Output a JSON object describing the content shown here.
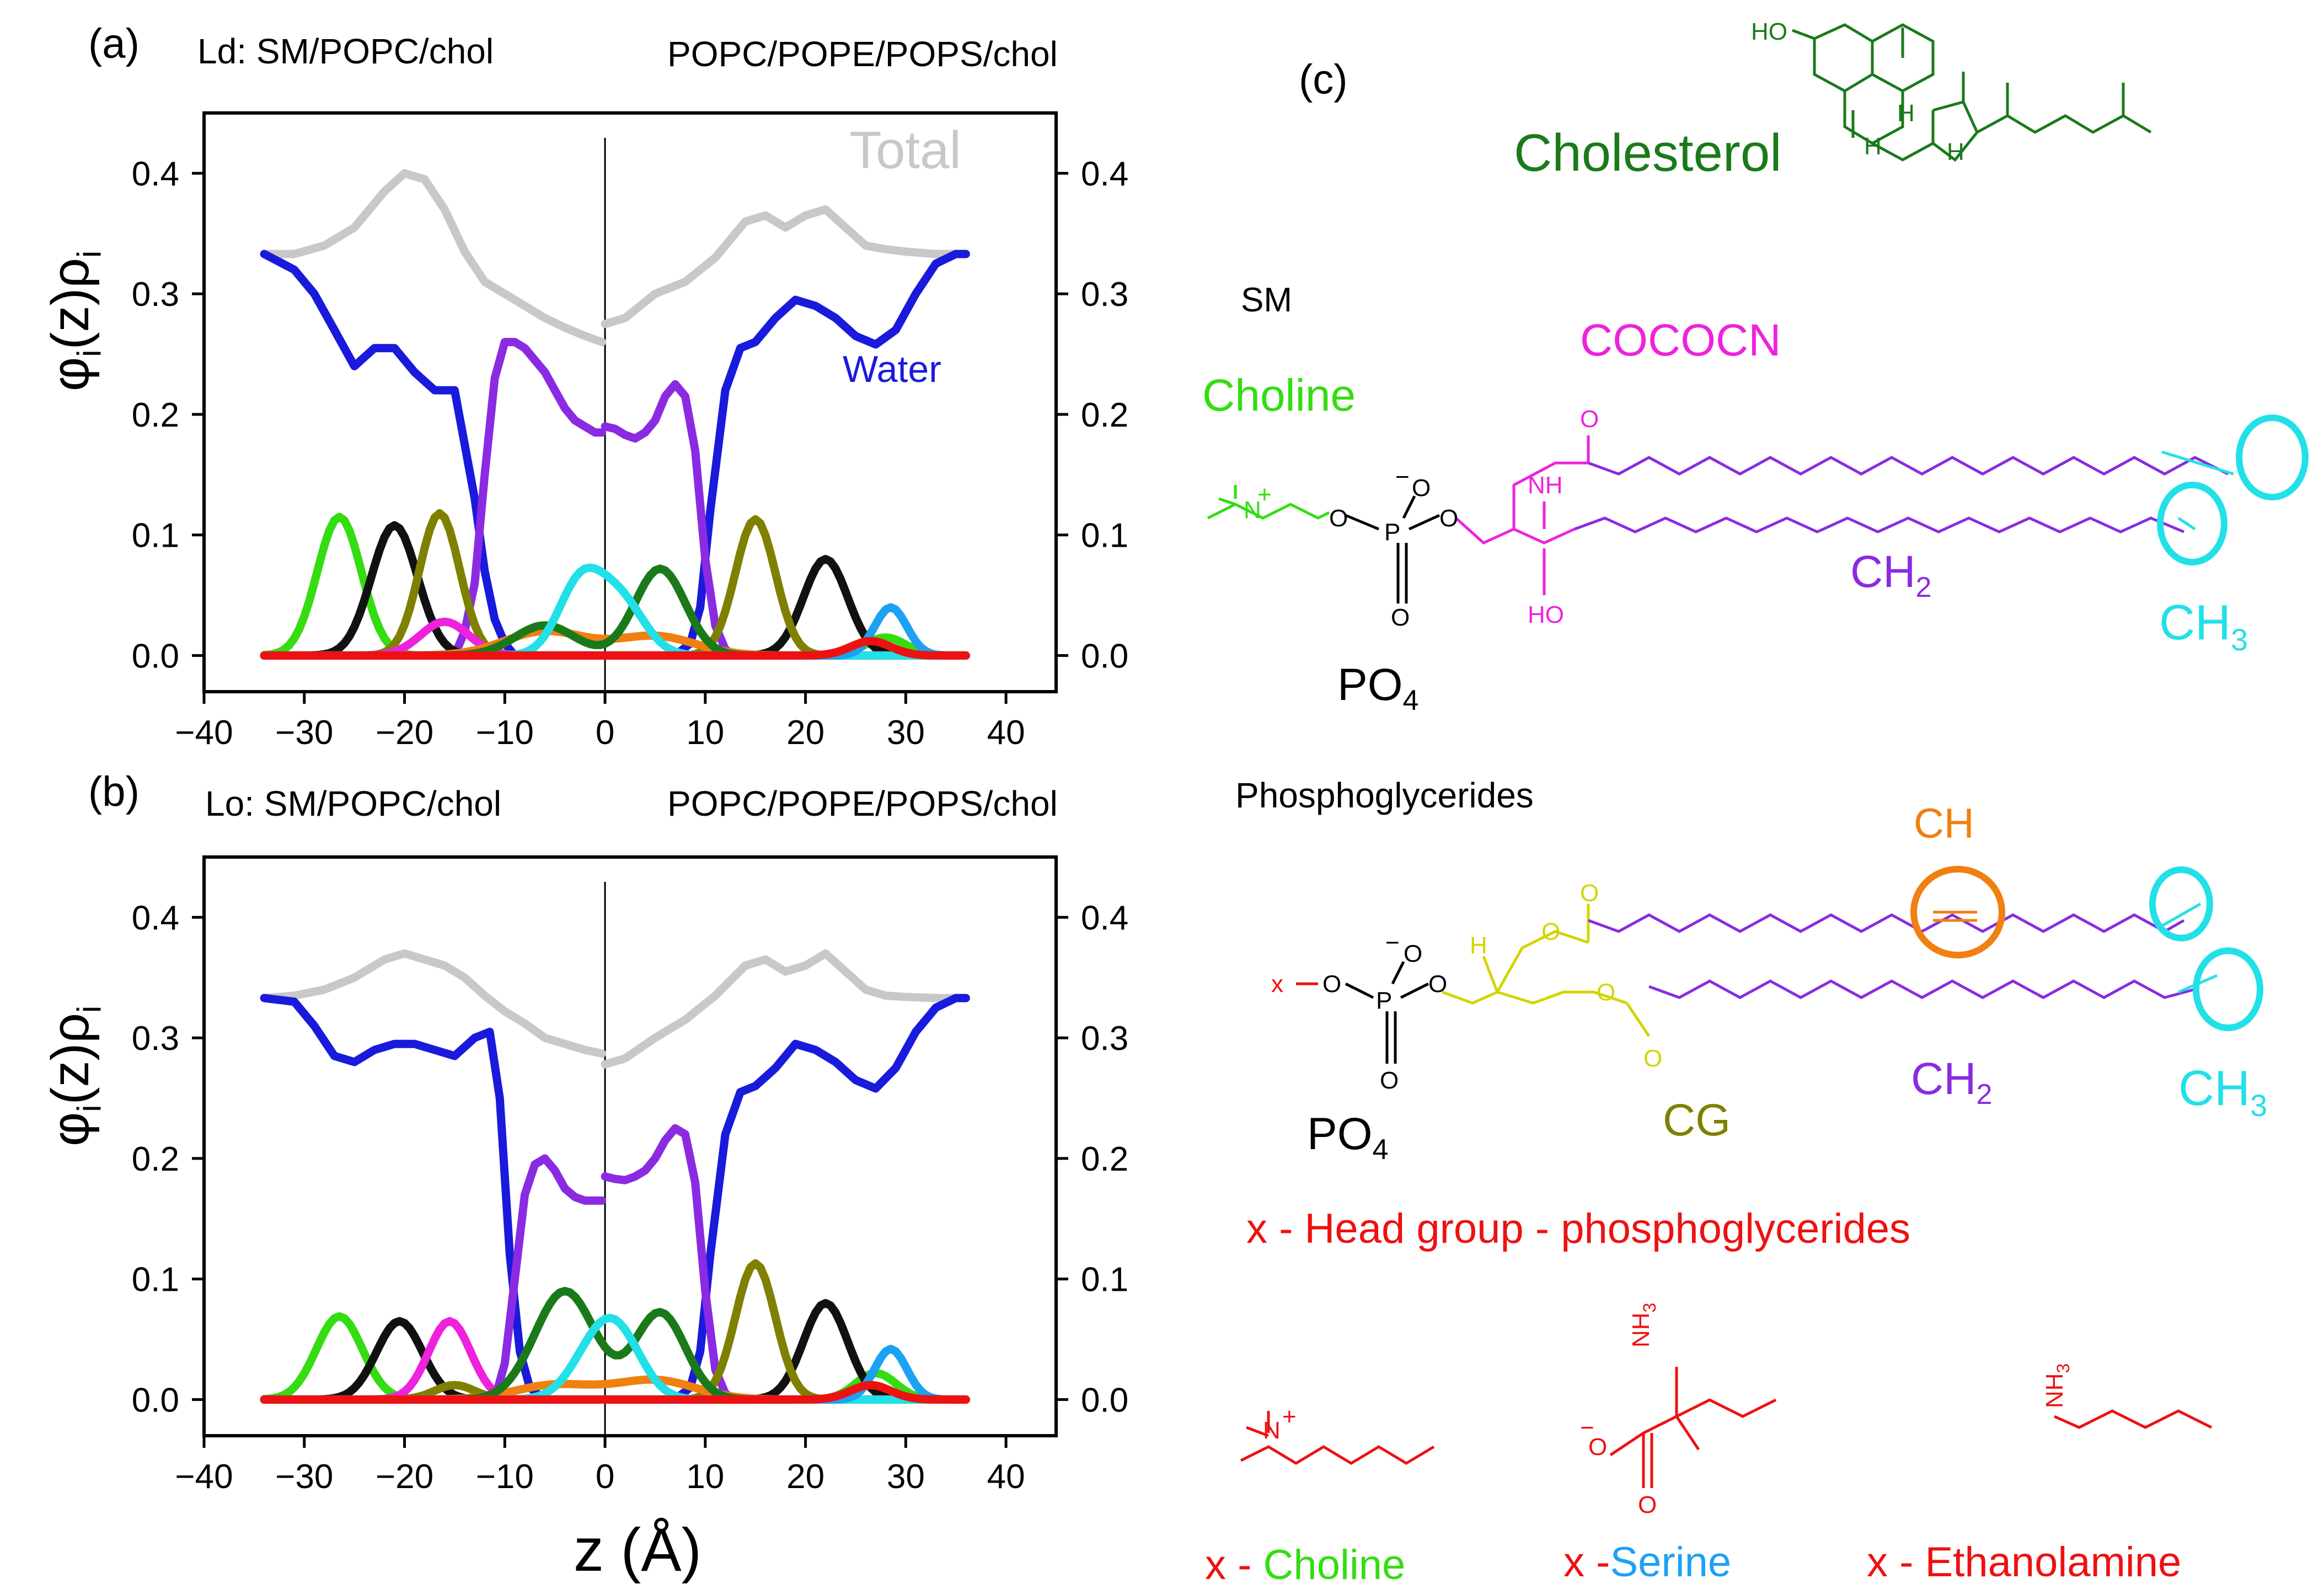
{
  "chart_data": [
    {
      "type": "line",
      "panel": "(a)",
      "title_left": "Ld: SM/POPC/chol",
      "title_right": "POPC/POPE/POPS/chol",
      "xlabel": "z (Å)",
      "ylabel": "φi(z)ρi",
      "xlim": [
        -40,
        45
      ],
      "ylim": [
        -0.03,
        0.45
      ],
      "xticks": [
        "−40",
        "−30",
        "−20",
        "−10",
        "0",
        "10",
        "20",
        "30",
        "40"
      ],
      "yticks": [
        "0.0",
        "0.1",
        "0.2",
        "0.3",
        "0.4"
      ],
      "annotations": [
        {
          "text": "Total",
          "color": "#c8c8c8"
        },
        {
          "text": "Water",
          "color": "#1a1adc"
        }
      ],
      "series": [
        {
          "name": "Total",
          "color": "#c8c8c8",
          "x": [
            -34,
            -31,
            -28,
            -25,
            -22,
            -20,
            -18,
            -16,
            -14,
            -12,
            -10,
            -8,
            -6,
            -4,
            -2,
            -0.3
          ],
          "y": [
            0.333,
            0.333,
            0.34,
            0.355,
            0.385,
            0.4,
            0.395,
            0.37,
            0.335,
            0.31,
            0.3,
            0.29,
            0.28,
            0.272,
            0.265,
            0.26
          ]
        },
        {
          "name": "Total",
          "color": "#c8c8c8",
          "x": [
            0,
            2,
            5,
            8,
            11,
            14,
            16,
            18,
            20,
            22,
            24,
            26,
            28,
            30,
            33,
            36
          ],
          "y": [
            0.275,
            0.28,
            0.3,
            0.31,
            0.33,
            0.36,
            0.365,
            0.355,
            0.365,
            0.37,
            0.355,
            0.34,
            0.337,
            0.335,
            0.333,
            0.333
          ]
        },
        {
          "name": "Water",
          "color": "#1a1adc",
          "x": [
            -34,
            -31,
            -29,
            -27,
            -25,
            -23,
            -21,
            -19,
            -17,
            -15,
            -13,
            -12,
            -11,
            -10,
            -9,
            -7,
            -4,
            -0.3
          ],
          "y": [
            0.333,
            0.32,
            0.3,
            0.27,
            0.24,
            0.255,
            0.255,
            0.235,
            0.22,
            0.22,
            0.13,
            0.07,
            0.03,
            0.01,
            0.0,
            0.0,
            0.0,
            0.0
          ]
        },
        {
          "name": "Water",
          "color": "#1a1adc",
          "x": [
            0,
            3,
            7,
            8.5,
            9.5,
            10.5,
            12,
            13.5,
            15,
            17,
            19,
            21,
            23,
            25,
            27,
            29,
            31,
            33,
            35,
            36
          ],
          "y": [
            0.0,
            0.0,
            0.0,
            0.01,
            0.04,
            0.12,
            0.22,
            0.255,
            0.26,
            0.28,
            0.295,
            0.29,
            0.28,
            0.265,
            0.258,
            0.27,
            0.3,
            0.325,
            0.333,
            0.333
          ]
        },
        {
          "name": "CH2",
          "color": "#8a2be2",
          "x": [
            -15,
            -14,
            -13,
            -12,
            -11,
            -10,
            -9,
            -8,
            -7,
            -6,
            -5,
            -4,
            -3,
            -2,
            -1,
            -0.3
          ],
          "y": [
            0.0,
            0.02,
            0.06,
            0.15,
            0.23,
            0.26,
            0.26,
            0.255,
            0.245,
            0.235,
            0.22,
            0.205,
            0.195,
            0.19,
            0.185,
            0.185
          ]
        },
        {
          "name": "CH2",
          "color": "#8a2be2",
          "x": [
            0,
            1,
            2,
            3,
            4,
            5,
            6,
            7,
            8,
            9,
            10,
            11,
            12,
            13
          ],
          "y": [
            0.19,
            0.188,
            0.183,
            0.18,
            0.185,
            0.195,
            0.215,
            0.225,
            0.215,
            0.17,
            0.08,
            0.025,
            0.005,
            0.0
          ]
        },
        {
          "name": "Choline",
          "color": "#33dd11",
          "shape": "peaks",
          "peaks": [
            {
              "mu": -26.5,
              "h": 0.115,
              "s": 2.2
            },
            {
              "mu": 28,
              "h": 0.015,
              "s": 2.0
            }
          ]
        },
        {
          "name": "PO4",
          "color": "#111111",
          "shape": "peaks",
          "peaks": [
            {
              "mu": -21,
              "h": 0.108,
              "s": 2.3
            },
            {
              "mu": 22,
              "h": 0.08,
              "s": 2.2
            }
          ]
        },
        {
          "name": "CG",
          "color": "#808000",
          "shape": "peaks",
          "peaks": [
            {
              "mu": -16.5,
              "h": 0.118,
              "s": 2.0
            },
            {
              "mu": 15,
              "h": 0.113,
              "s": 2.0
            }
          ]
        },
        {
          "name": "COCOCN",
          "color": "#ee22dd",
          "shape": "peaks",
          "peaks": [
            {
              "mu": -16,
              "h": 0.028,
              "s": 2.4
            }
          ]
        },
        {
          "name": "CH",
          "color": "#f08010",
          "shape": "peaks",
          "peaks": [
            {
              "mu": -6,
              "h": 0.02,
              "s": 4.0
            },
            {
              "mu": 5,
              "h": 0.016,
              "s": 4.0
            }
          ]
        },
        {
          "name": "Cholesterol",
          "color": "#1a7a1a",
          "shape": "peaks",
          "peaks": [
            {
              "mu": -6,
              "h": 0.025,
              "s": 3.0
            },
            {
              "mu": 5.5,
              "h": 0.072,
              "s": 2.5
            }
          ]
        },
        {
          "name": "CH3",
          "color": "#22e0e8",
          "shape": "peaks",
          "peaks": [
            {
              "mu": -2.5,
              "h": 0.058,
              "s": 2.2
            },
            {
              "mu": 1.5,
              "h": 0.045,
              "s": 2.4
            }
          ]
        },
        {
          "name": "Serine",
          "color": "#1da1f2",
          "shape": "peaks",
          "peaks": [
            {
              "mu": 28.5,
              "h": 0.04,
              "s": 1.6
            }
          ]
        },
        {
          "name": "Ethanolamine",
          "color": "#ee1111",
          "shape": "peaks",
          "peaks": [
            {
              "mu": 26.5,
              "h": 0.012,
              "s": 2.0
            }
          ]
        }
      ]
    },
    {
      "type": "line",
      "panel": "(b)",
      "title_left": "Lo: SM/POPC/chol",
      "title_right": "POPC/POPE/POPS/chol",
      "xlabel": "z (Å)",
      "ylabel": "φi(z)ρi",
      "xlim": [
        -40,
        45
      ],
      "ylim": [
        -0.03,
        0.45
      ],
      "xticks": [
        "−40",
        "−30",
        "−20",
        "−10",
        "0",
        "10",
        "20",
        "30",
        "40"
      ],
      "yticks": [
        "0.0",
        "0.1",
        "0.2",
        "0.3",
        "0.4"
      ],
      "annotations": [],
      "series": [
        {
          "name": "Total",
          "color": "#c8c8c8",
          "x": [
            -34,
            -31,
            -28,
            -25,
            -22,
            -20,
            -18,
            -16,
            -14,
            -12,
            -10,
            -8,
            -6,
            -4,
            -2,
            -0.3
          ],
          "y": [
            0.333,
            0.335,
            0.34,
            0.35,
            0.365,
            0.37,
            0.365,
            0.36,
            0.35,
            0.335,
            0.322,
            0.312,
            0.3,
            0.295,
            0.29,
            0.287
          ]
        },
        {
          "name": "Total",
          "color": "#c8c8c8",
          "x": [
            0,
            2,
            5,
            8,
            11,
            14,
            16,
            18,
            20,
            22,
            24,
            26,
            28,
            30,
            33,
            36
          ],
          "y": [
            0.278,
            0.283,
            0.3,
            0.315,
            0.335,
            0.36,
            0.365,
            0.355,
            0.36,
            0.37,
            0.355,
            0.34,
            0.335,
            0.334,
            0.333,
            0.333
          ]
        },
        {
          "name": "Water",
          "color": "#1a1adc",
          "x": [
            -34,
            -31,
            -29,
            -27,
            -25,
            -23,
            -21,
            -19,
            -17,
            -15,
            -13,
            -11.5,
            -10.5,
            -9.5,
            -8.5,
            -7.5,
            -6,
            -3,
            -0.3
          ],
          "y": [
            0.333,
            0.33,
            0.31,
            0.285,
            0.28,
            0.29,
            0.295,
            0.295,
            0.29,
            0.285,
            0.3,
            0.305,
            0.25,
            0.12,
            0.04,
            0.01,
            0.0,
            0.0,
            0.0
          ]
        },
        {
          "name": "Water",
          "color": "#1a1adc",
          "x": [
            0,
            3,
            7,
            8.5,
            9.5,
            10.5,
            12,
            13.5,
            15,
            17,
            19,
            21,
            23,
            25,
            27,
            29,
            31,
            33,
            35,
            36
          ],
          "y": [
            0.0,
            0.0,
            0.0,
            0.01,
            0.04,
            0.12,
            0.22,
            0.255,
            0.26,
            0.275,
            0.295,
            0.29,
            0.28,
            0.265,
            0.258,
            0.275,
            0.305,
            0.325,
            0.333,
            0.333
          ]
        },
        {
          "name": "CH2",
          "color": "#8a2be2",
          "x": [
            -11,
            -10,
            -9,
            -8,
            -7,
            -6,
            -5,
            -4,
            -3,
            -2,
            -1,
            -0.3
          ],
          "y": [
            0.0,
            0.03,
            0.1,
            0.17,
            0.195,
            0.2,
            0.19,
            0.175,
            0.168,
            0.165,
            0.165,
            0.165
          ]
        },
        {
          "name": "CH2",
          "color": "#8a2be2",
          "x": [
            0,
            1,
            2,
            3,
            4,
            5,
            6,
            7,
            8,
            9,
            10,
            11,
            12,
            13
          ],
          "y": [
            0.185,
            0.183,
            0.182,
            0.185,
            0.19,
            0.2,
            0.215,
            0.225,
            0.22,
            0.18,
            0.09,
            0.025,
            0.005,
            0.0
          ]
        },
        {
          "name": "Choline",
          "color": "#33dd11",
          "shape": "peaks",
          "peaks": [
            {
              "mu": -26.5,
              "h": 0.069,
              "s": 2.3
            },
            {
              "mu": 27,
              "h": 0.022,
              "s": 2.0
            }
          ]
        },
        {
          "name": "PO4",
          "color": "#111111",
          "shape": "peaks",
          "peaks": [
            {
              "mu": -20.5,
              "h": 0.065,
              "s": 2.3
            },
            {
              "mu": 22,
              "h": 0.08,
              "s": 2.2
            }
          ]
        },
        {
          "name": "CG",
          "color": "#808000",
          "shape": "peaks",
          "peaks": [
            {
              "mu": -15,
              "h": 0.012,
              "s": 2.0
            },
            {
              "mu": 15,
              "h": 0.113,
              "s": 2.0
            }
          ]
        },
        {
          "name": "COCOCN",
          "color": "#ee22dd",
          "shape": "peaks",
          "peaks": [
            {
              "mu": -15.5,
              "h": 0.065,
              "s": 2.1
            }
          ]
        },
        {
          "name": "CH",
          "color": "#f08010",
          "shape": "peaks",
          "peaks": [
            {
              "mu": -5,
              "h": 0.012,
              "s": 4.0
            },
            {
              "mu": 5,
              "h": 0.016,
              "s": 4.0
            }
          ]
        },
        {
          "name": "Cholesterol",
          "color": "#1a7a1a",
          "shape": "peaks",
          "peaks": [
            {
              "mu": -4,
              "h": 0.09,
              "s": 3.0
            },
            {
              "mu": 5.5,
              "h": 0.072,
              "s": 2.5
            }
          ]
        },
        {
          "name": "CH3",
          "color": "#22e0e8",
          "shape": "peaks",
          "peaks": [
            {
              "mu": -1,
              "h": 0.035,
              "s": 2.5
            },
            {
              "mu": 1.5,
              "h": 0.042,
              "s": 2.4
            }
          ]
        },
        {
          "name": "Serine",
          "color": "#1da1f2",
          "shape": "peaks",
          "peaks": [
            {
              "mu": 28.5,
              "h": 0.042,
              "s": 1.6
            }
          ]
        },
        {
          "name": "Ethanolamine",
          "color": "#ee1111",
          "shape": "peaks",
          "peaks": [
            {
              "mu": 26.5,
              "h": 0.012,
              "s": 2.0
            }
          ]
        }
      ]
    }
  ],
  "panel_c": {
    "tag": "(c)",
    "cholesterol": {
      "label": "Cholesterol",
      "color": "#1a7a1a",
      "atoms": [
        "HO",
        "H",
        "H",
        "H"
      ]
    },
    "sm": {
      "title": "SM",
      "choline": {
        "label": "Choline",
        "color": "#33dd11"
      },
      "cococn": {
        "label": "COCOCN",
        "color": "#ee22dd"
      },
      "ch2": {
        "label": "CH",
        "sub": "2",
        "color": "#8a2be2"
      },
      "ch3": {
        "label": "CH",
        "sub": "3",
        "color": "#22e0e8"
      },
      "po4": {
        "label": "PO",
        "sub": "4"
      },
      "atoms": {
        "nh": "NH",
        "o": "O",
        "oh": "HO",
        "n": "N",
        "plus": "+",
        "p": "P",
        "minus": "−"
      }
    },
    "pg": {
      "title": "Phosphoglycerides",
      "ch": {
        "label": "CH",
        "color": "#f08010"
      },
      "cg": {
        "label": "CG",
        "color": "#808000"
      },
      "ch2": {
        "label": "CH",
        "sub": "2",
        "color": "#8a2be2"
      },
      "ch3": {
        "label": "CH",
        "sub": "3",
        "color": "#22e0e8"
      },
      "po4": {
        "label": "PO",
        "sub": "4"
      },
      "atoms": {
        "x": "x",
        "h": "H",
        "o": "O",
        "p": "P",
        "minus": "−"
      }
    },
    "head_group_title": "x - Head group - phosphoglycerides",
    "heads": [
      {
        "prefix": "x - ",
        "name": "Choline",
        "color": "#33dd11"
      },
      {
        "prefix": "x -",
        "name": "Serine",
        "color": "#1da1f2"
      },
      {
        "prefix": "x - ",
        "name": "Ethanolamine",
        "color": "#ee1111"
      }
    ],
    "head_atoms": {
      "n": "N",
      "plus": "+",
      "nh3": "NH",
      "three": "3",
      "o": "O",
      "minus": "−"
    }
  }
}
